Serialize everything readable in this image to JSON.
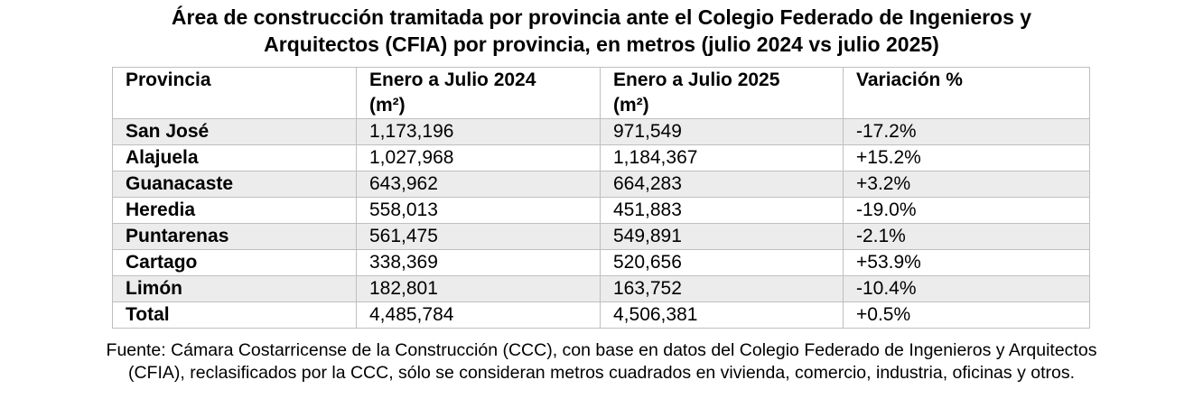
{
  "title": {
    "line1": "Área de construcción tramitada por provincia ante el Colegio Federado de Ingenieros y",
    "line2": "Arquitectos (CFIA) por provincia, en metros (julio 2024 vs julio 2025)"
  },
  "table": {
    "headers": {
      "col1": "Provincia",
      "col2_line1": "Enero a Julio 2024",
      "col2_line2": "(m²)",
      "col3_line1": "Enero a Julio 2025",
      "col3_line2": "(m²)",
      "col4": "Variación %"
    },
    "rows": [
      {
        "provincia": "San José",
        "y2024": "1,173,196",
        "y2025": "971,549",
        "variacion": "-17.2%"
      },
      {
        "provincia": "Alajuela",
        "y2024": "1,027,968",
        "y2025": "1,184,367",
        "variacion": "+15.2%"
      },
      {
        "provincia": "Guanacaste",
        "y2024": "643,962",
        "y2025": "664,283",
        "variacion": "+3.2%"
      },
      {
        "provincia": "Heredia",
        "y2024": "558,013",
        "y2025": "451,883",
        "variacion": "-19.0%"
      },
      {
        "provincia": "Puntarenas",
        "y2024": "561,475",
        "y2025": "549,891",
        "variacion": "-2.1%"
      },
      {
        "provincia": "Cartago",
        "y2024": "338,369",
        "y2025": "520,656",
        "variacion": "+53.9%"
      },
      {
        "provincia": "Limón",
        "y2024": "182,801",
        "y2025": "163,752",
        "variacion": "-10.4%"
      },
      {
        "provincia": "Total",
        "y2024": "4,485,784",
        "y2025": "4,506,381",
        "variacion": "+0.5%"
      }
    ]
  },
  "source": {
    "line1": "Fuente: Cámara Costarricense de la Construcción (CCC), con base en datos del Colegio Federado de Ingenieros y Arquitectos",
    "line2": "(CFIA), reclasificados por la CCC, sólo se consideran metros cuadrados en vivienda, comercio, industria, oficinas y otros."
  },
  "colors": {
    "row_shade": "#ececec",
    "border": "#bfbfbf"
  }
}
